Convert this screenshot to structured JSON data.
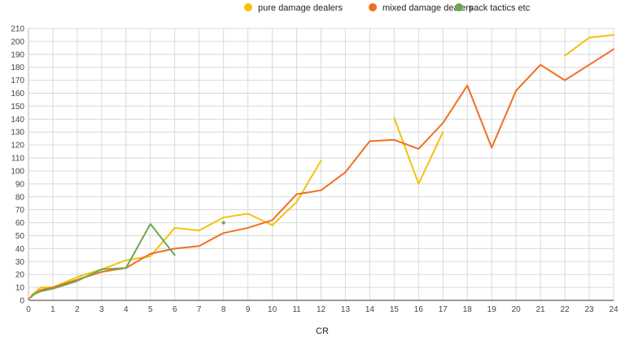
{
  "chart_data": {
    "type": "line",
    "xlabel": "CR",
    "ylabel": "",
    "xlim": [
      0,
      24
    ],
    "ylim": [
      0,
      210
    ],
    "x_ticks": [
      0,
      1,
      2,
      3,
      4,
      5,
      6,
      7,
      8,
      9,
      10,
      11,
      12,
      13,
      14,
      15,
      16,
      17,
      18,
      19,
      20,
      21,
      22,
      23,
      24
    ],
    "y_ticks": [
      0,
      10,
      20,
      30,
      40,
      50,
      60,
      70,
      80,
      90,
      100,
      110,
      120,
      130,
      140,
      150,
      160,
      170,
      180,
      190,
      200,
      210
    ],
    "grid": true,
    "legend_position": "top",
    "series": [
      {
        "name": "pure damage dealers",
        "color": "#f4c20d",
        "segments": [
          [
            [
              0.125,
              4
            ],
            [
              0.25,
              6
            ],
            [
              0.5,
              10
            ],
            [
              1,
              10
            ],
            [
              2,
              18
            ],
            [
              3,
              24
            ],
            [
              4,
              31
            ],
            [
              5,
              34
            ],
            [
              6,
              56
            ],
            [
              7,
              54
            ],
            [
              8,
              64
            ],
            [
              9,
              67
            ],
            [
              10,
              58
            ],
            [
              11,
              76
            ],
            [
              12,
              108
            ]
          ],
          [
            [
              15,
              141
            ],
            [
              16,
              90
            ],
            [
              17,
              130
            ]
          ],
          [
            [
              22,
              189
            ],
            [
              23,
              203
            ],
            [
              24,
              205
            ]
          ]
        ]
      },
      {
        "name": "mixed damage dealers",
        "color": "#f07020",
        "segments": [
          [
            [
              0,
              1
            ],
            [
              0.125,
              3
            ],
            [
              0.25,
              5
            ],
            [
              0.5,
              8
            ],
            [
              1,
              10
            ],
            [
              2,
              16
            ],
            [
              3,
              22
            ],
            [
              4,
              25
            ],
            [
              5,
              36
            ],
            [
              6,
              40
            ],
            [
              7,
              42
            ],
            [
              8,
              52
            ],
            [
              9,
              56
            ],
            [
              10,
              62
            ],
            [
              11,
              82
            ],
            [
              12,
              85
            ],
            [
              13,
              99
            ],
            [
              14,
              123
            ],
            [
              15,
              124
            ],
            [
              16,
              117
            ],
            [
              17,
              137
            ],
            [
              18,
              166
            ],
            [
              19,
              118
            ],
            [
              20,
              162
            ],
            [
              21,
              182
            ],
            [
              22,
              170
            ],
            [
              23,
              182
            ],
            [
              24,
              194
            ]
          ]
        ]
      },
      {
        "name": "pack tactics etc",
        "color": "#6aa84f",
        "segments": [
          [
            [
              0.125,
              3
            ],
            [
              0.25,
              5
            ],
            [
              0.5,
              7
            ],
            [
              1,
              9
            ],
            [
              2,
              15
            ],
            [
              3,
              24
            ],
            [
              4,
              25
            ],
            [
              5,
              59
            ],
            [
              6,
              35
            ]
          ],
          [
            [
              8,
              60
            ]
          ]
        ]
      }
    ]
  }
}
